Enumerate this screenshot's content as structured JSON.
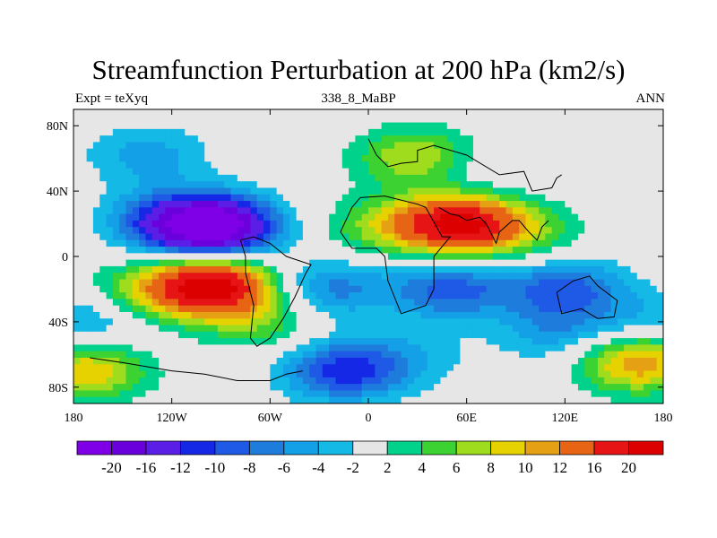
{
  "title": "Streamfunction Perturbation at 200 hPa (km2/s)",
  "subtitle_left": "Expt = teXyq",
  "subtitle_center": "338_8_MaBP",
  "subtitle_right": "ANN",
  "chart_data": {
    "type": "heatmap",
    "title": "Streamfunction Perturbation at 200 hPa (km2/s)",
    "xlim": [
      -180,
      180
    ],
    "ylim": [
      -90,
      90
    ],
    "x_ticks": [
      {
        "value": -180,
        "label": "180"
      },
      {
        "value": -120,
        "label": "120W"
      },
      {
        "value": -60,
        "label": "60W"
      },
      {
        "value": 0,
        "label": "0"
      },
      {
        "value": 60,
        "label": "60E"
      },
      {
        "value": 120,
        "label": "120E"
      },
      {
        "value": 180,
        "label": "180"
      }
    ],
    "y_ticks": [
      {
        "value": 80,
        "label": "80N"
      },
      {
        "value": 40,
        "label": "40N"
      },
      {
        "value": 0,
        "label": "0"
      },
      {
        "value": -40,
        "label": "40S"
      },
      {
        "value": -80,
        "label": "80S"
      }
    ],
    "levels": [
      -20,
      -16,
      -12,
      -10,
      -8,
      -6,
      -4,
      -2,
      2,
      4,
      6,
      8,
      10,
      12,
      16,
      20
    ],
    "level_labels": [
      "-20",
      "-16",
      "-12",
      "-10",
      "-8",
      "-6",
      "-4",
      "-2",
      "2",
      "4",
      "6",
      "8",
      "10",
      "12",
      "16",
      "20"
    ],
    "colors": [
      "#7f00e6",
      "#6a00dc",
      "#5a1ee6",
      "#1428e6",
      "#1e5ae6",
      "#1e7ddc",
      "#14a0e6",
      "#14b9e6",
      "#e6e6e6",
      "#00d28c",
      "#3cd232",
      "#a0dc1e",
      "#e6d200",
      "#e6a014",
      "#e66414",
      "#e61414",
      "#dc0000"
    ],
    "features": [
      {
        "lon": -135,
        "lat": 62,
        "val": -5
      },
      {
        "lon": -95,
        "lat": 18,
        "val": -24
      },
      {
        "lon": -125,
        "lat": 22,
        "val": -7
      },
      {
        "lon": -95,
        "lat": -18,
        "val": 22
      },
      {
        "lon": -135,
        "lat": -22,
        "val": 6
      },
      {
        "lon": -65,
        "lat": -40,
        "val": 5
      },
      {
        "lon": -172,
        "lat": -70,
        "val": 10
      },
      {
        "lon": -170,
        "lat": -40,
        "val": -5
      },
      {
        "lon": -15,
        "lat": -70,
        "val": -11
      },
      {
        "lon": 25,
        "lat": -62,
        "val": -3
      },
      {
        "lon": 30,
        "lat": 60,
        "val": 9
      },
      {
        "lon": 55,
        "lat": 20,
        "val": 20
      },
      {
        "lon": 95,
        "lat": 15,
        "val": 5
      },
      {
        "lon": 10,
        "lat": 18,
        "val": 6
      },
      {
        "lon": 55,
        "lat": 50,
        "val": -3
      },
      {
        "lon": 50,
        "lat": -20,
        "val": -9
      },
      {
        "lon": 120,
        "lat": -20,
        "val": -9
      },
      {
        "lon": -25,
        "lat": -20,
        "val": -7
      },
      {
        "lon": 115,
        "lat": -47,
        "val": -5
      },
      {
        "lon": 165,
        "lat": -65,
        "val": 12
      },
      {
        "lon": 175,
        "lat": -40,
        "val": -4
      }
    ],
    "coastline": [
      [
        [
          -170,
          -62
        ],
        [
          -150,
          -65
        ],
        [
          -120,
          -70
        ],
        [
          -100,
          -72
        ],
        [
          -80,
          -76
        ],
        [
          -60,
          -76
        ],
        [
          -50,
          -72
        ],
        [
          -40,
          -70
        ]
      ],
      [
        [
          -78,
          10
        ],
        [
          -75,
          0
        ],
        [
          -75,
          -10
        ],
        [
          -70,
          -30
        ],
        [
          -72,
          -50
        ],
        [
          -68,
          -55
        ],
        [
          -60,
          -50
        ],
        [
          -52,
          -38
        ],
        [
          -45,
          -25
        ],
        [
          -38,
          -10
        ],
        [
          -35,
          -5
        ],
        [
          -50,
          0
        ],
        [
          -60,
          8
        ],
        [
          -70,
          12
        ],
        [
          -78,
          10
        ]
      ],
      [
        [
          -5,
          36
        ],
        [
          10,
          37
        ],
        [
          30,
          32
        ],
        [
          35,
          30
        ],
        [
          45,
          12
        ],
        [
          50,
          12
        ],
        [
          40,
          0
        ],
        [
          40,
          -20
        ],
        [
          35,
          -30
        ],
        [
          20,
          -35
        ],
        [
          12,
          -15
        ],
        [
          10,
          0
        ],
        [
          5,
          5
        ],
        [
          -10,
          5
        ],
        [
          -17,
          15
        ],
        [
          -10,
          30
        ],
        [
          -5,
          36
        ]
      ],
      [
        [
          0,
          72
        ],
        [
          5,
          62
        ],
        [
          12,
          55
        ],
        [
          20,
          57
        ],
        [
          30,
          58
        ],
        [
          30,
          65
        ],
        [
          40,
          68
        ],
        [
          60,
          62
        ],
        [
          80,
          50
        ],
        [
          95,
          52
        ],
        [
          100,
          40
        ],
        [
          112,
          42
        ],
        [
          115,
          48
        ],
        [
          118,
          50
        ]
      ],
      [
        [
          43,
          30
        ],
        [
          50,
          26
        ],
        [
          55,
          25
        ],
        [
          60,
          22
        ],
        [
          68,
          24
        ],
        [
          72,
          20
        ],
        [
          78,
          8
        ],
        [
          80,
          15
        ],
        [
          88,
          22
        ],
        [
          92,
          22
        ],
        [
          98,
          15
        ],
        [
          103,
          10
        ],
        [
          106,
          18
        ],
        [
          110,
          22
        ]
      ],
      [
        [
          115,
          -22
        ],
        [
          125,
          -15
        ],
        [
          135,
          -12
        ],
        [
          140,
          -18
        ],
        [
          152,
          -27
        ],
        [
          150,
          -37
        ],
        [
          140,
          -38
        ],
        [
          130,
          -32
        ],
        [
          118,
          -35
        ],
        [
          115,
          -22
        ]
      ]
    ]
  },
  "colorbar": {
    "labels": [
      "-20",
      "-16",
      "-12",
      "-10",
      "-8",
      "-6",
      "-4",
      "-2",
      "2",
      "4",
      "6",
      "8",
      "10",
      "12",
      "16",
      "20"
    ]
  }
}
